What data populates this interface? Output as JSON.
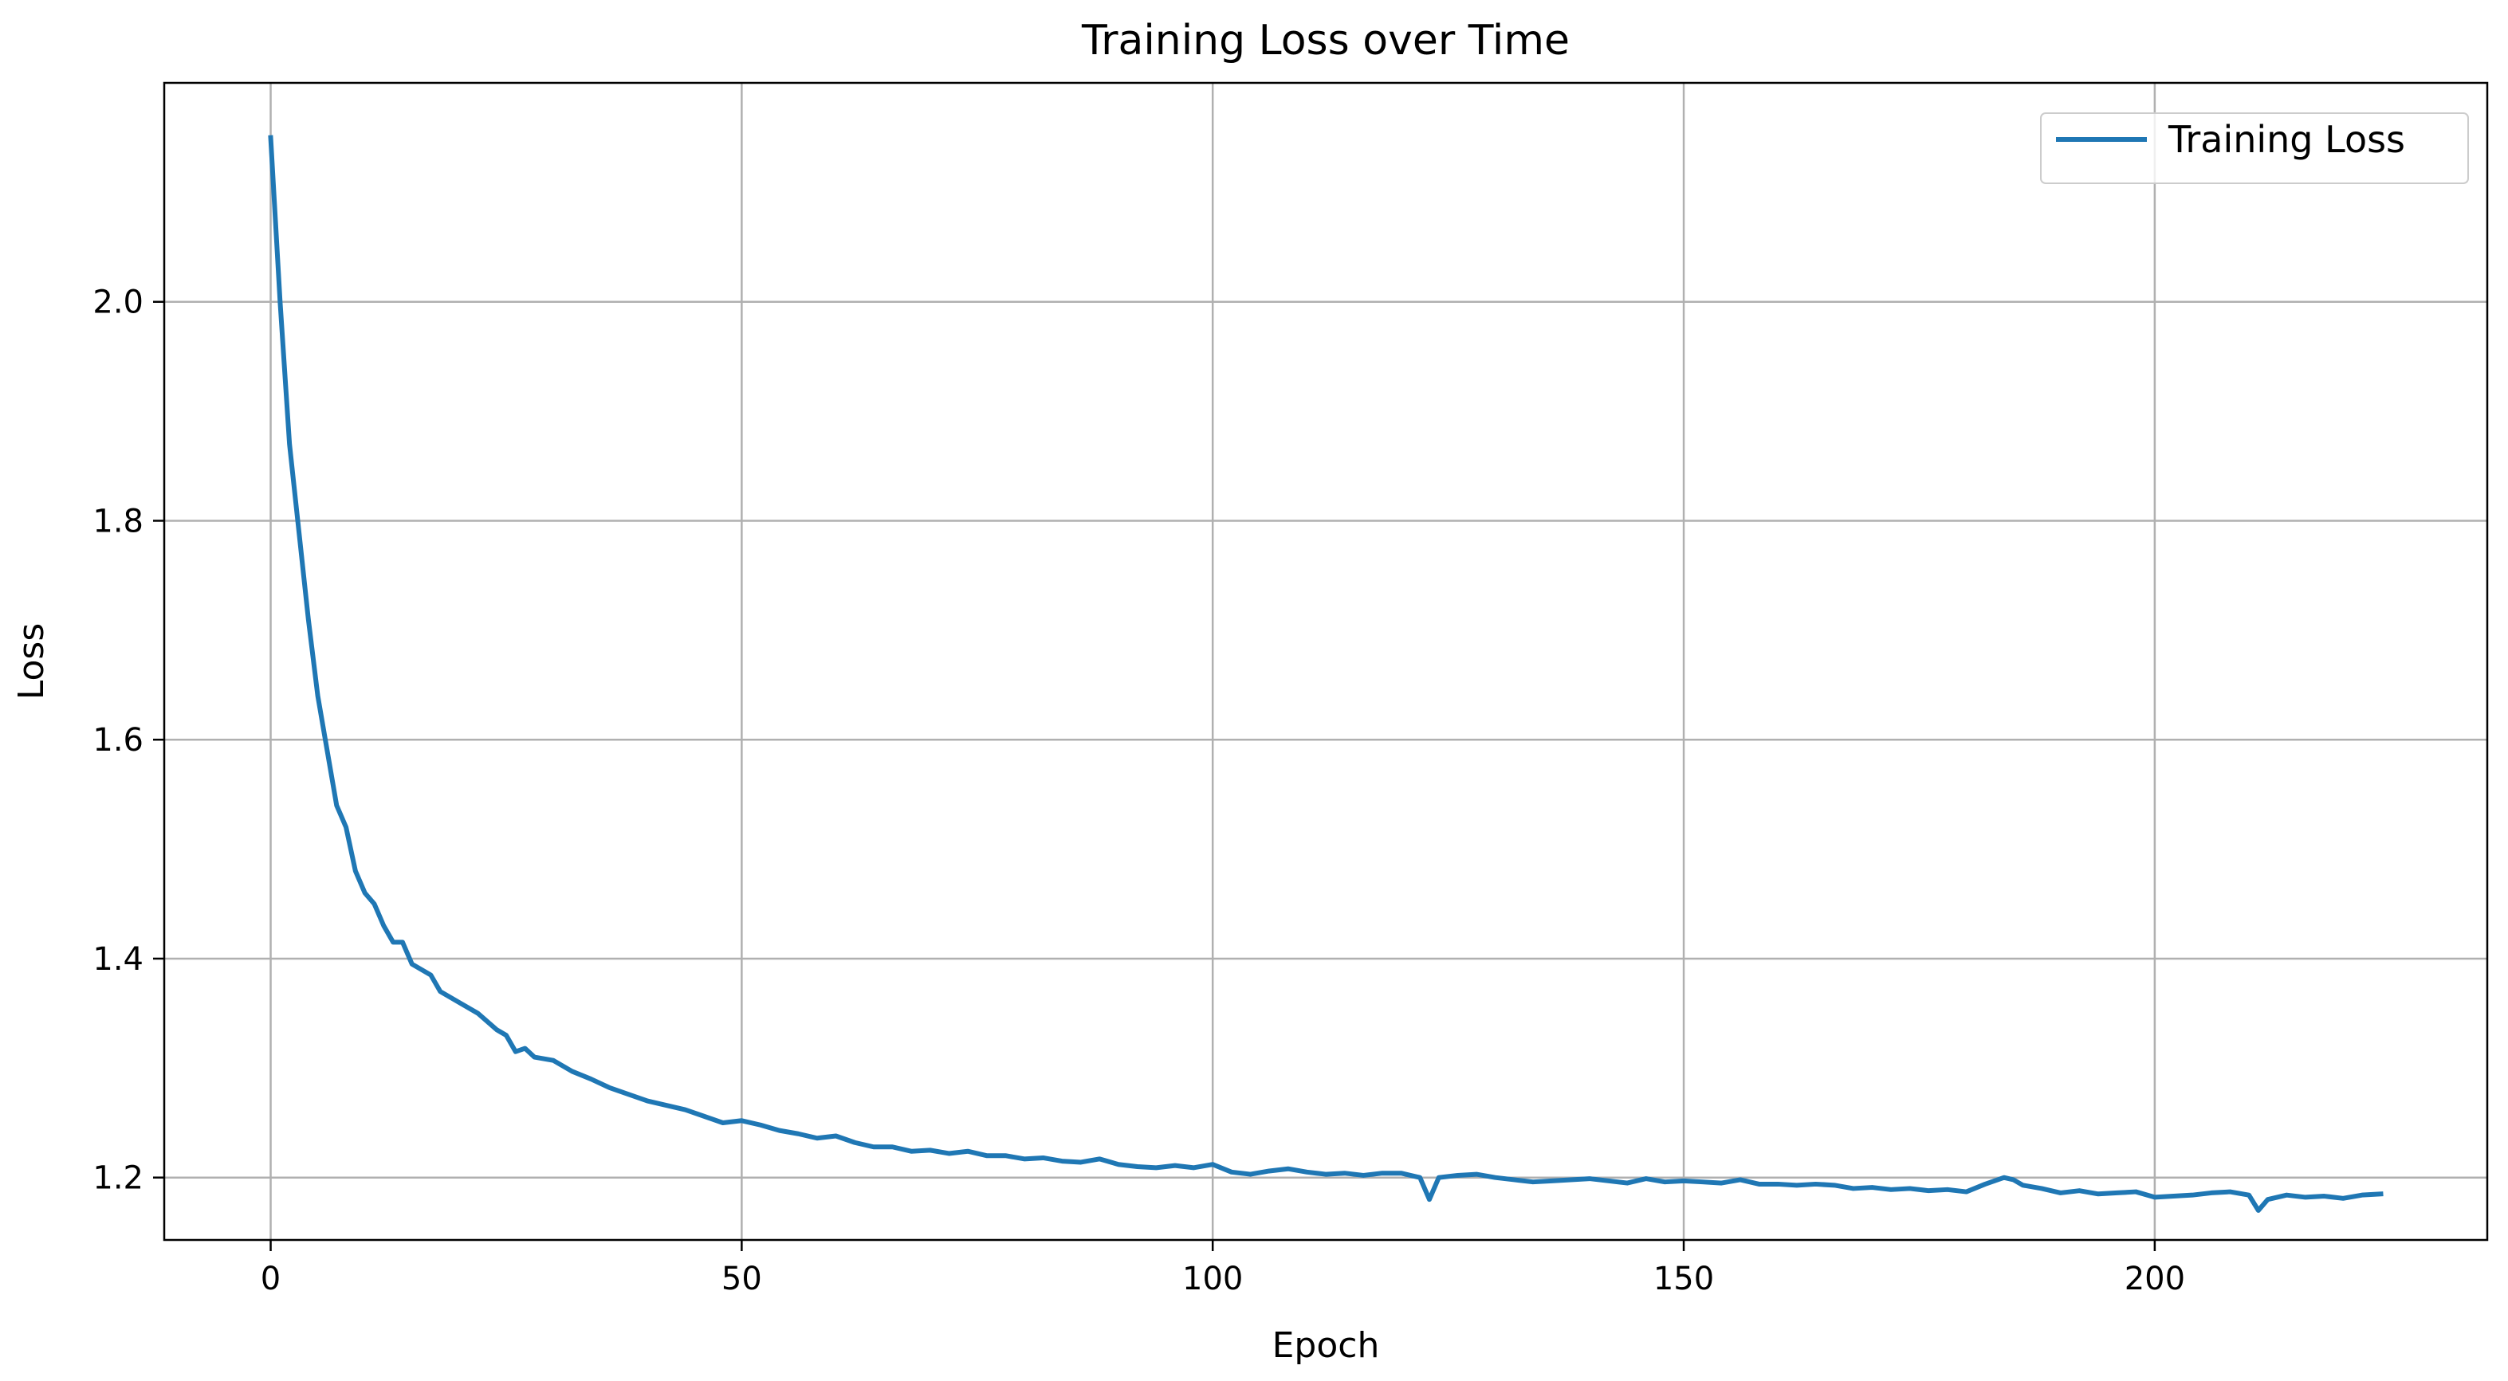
{
  "chart_data": {
    "type": "line",
    "title": "Training Loss over Time",
    "xlabel": "Epoch",
    "ylabel": "Loss",
    "xlim": [
      -11.3,
      235.3
    ],
    "ylim": [
      1.143,
      2.2
    ],
    "xticks": [
      0,
      50,
      100,
      150,
      200
    ],
    "xtick_labels": [
      "0",
      "50",
      "100",
      "150",
      "200"
    ],
    "yticks": [
      1.2,
      1.4,
      1.6,
      1.8,
      2.0
    ],
    "ytick_labels": [
      "1.2",
      "1.4",
      "1.6",
      "1.8",
      "2.0"
    ],
    "grid": true,
    "legend_position": "top-right",
    "series": [
      {
        "name": "Training Loss",
        "color": "#1f77b4",
        "x": [
          0,
          1,
          2,
          3,
          4,
          5,
          6,
          7,
          8,
          9,
          10,
          11,
          12,
          13,
          14,
          15,
          16,
          17,
          18,
          19,
          20,
          22,
          24,
          25,
          26,
          27,
          28,
          30,
          32,
          34,
          36,
          38,
          40,
          42,
          44,
          46,
          48,
          50,
          52,
          54,
          56,
          58,
          60,
          62,
          64,
          66,
          68,
          70,
          72,
          74,
          76,
          78,
          80,
          82,
          84,
          86,
          88,
          90,
          92,
          94,
          96,
          98,
          100,
          102,
          104,
          106,
          108,
          110,
          112,
          114,
          116,
          118,
          120,
          122,
          123,
          124,
          126,
          128,
          130,
          132,
          134,
          136,
          138,
          140,
          142,
          144,
          146,
          148,
          150,
          152,
          154,
          156,
          158,
          160,
          162,
          164,
          166,
          168,
          170,
          172,
          174,
          176,
          178,
          180,
          182,
          184,
          185,
          186,
          188,
          190,
          192,
          194,
          196,
          198,
          200,
          202,
          204,
          206,
          208,
          210,
          211,
          212,
          214,
          216,
          218,
          220,
          222,
          224
        ],
        "y": [
          2.15,
          2.0,
          1.87,
          1.79,
          1.71,
          1.64,
          1.59,
          1.54,
          1.52,
          1.48,
          1.46,
          1.45,
          1.43,
          1.415,
          1.415,
          1.395,
          1.39,
          1.385,
          1.37,
          1.365,
          1.36,
          1.35,
          1.335,
          1.33,
          1.315,
          1.318,
          1.31,
          1.307,
          1.297,
          1.29,
          1.282,
          1.276,
          1.27,
          1.266,
          1.262,
          1.256,
          1.25,
          1.252,
          1.248,
          1.243,
          1.24,
          1.236,
          1.238,
          1.232,
          1.228,
          1.228,
          1.224,
          1.225,
          1.222,
          1.224,
          1.22,
          1.22,
          1.217,
          1.218,
          1.215,
          1.214,
          1.217,
          1.212,
          1.21,
          1.209,
          1.211,
          1.209,
          1.212,
          1.205,
          1.203,
          1.206,
          1.208,
          1.205,
          1.203,
          1.204,
          1.202,
          1.204,
          1.204,
          1.2,
          1.18,
          1.2,
          1.202,
          1.203,
          1.2,
          1.198,
          1.196,
          1.197,
          1.198,
          1.199,
          1.197,
          1.195,
          1.199,
          1.196,
          1.197,
          1.196,
          1.195,
          1.198,
          1.194,
          1.194,
          1.193,
          1.194,
          1.193,
          1.19,
          1.191,
          1.189,
          1.19,
          1.188,
          1.189,
          1.187,
          1.194,
          1.2,
          1.198,
          1.193,
          1.19,
          1.186,
          1.188,
          1.185,
          1.186,
          1.187,
          1.182,
          1.183,
          1.184,
          1.186,
          1.187,
          1.184,
          1.17,
          1.18,
          1.184,
          1.182,
          1.183,
          1.181,
          1.184,
          1.185
        ]
      }
    ]
  }
}
